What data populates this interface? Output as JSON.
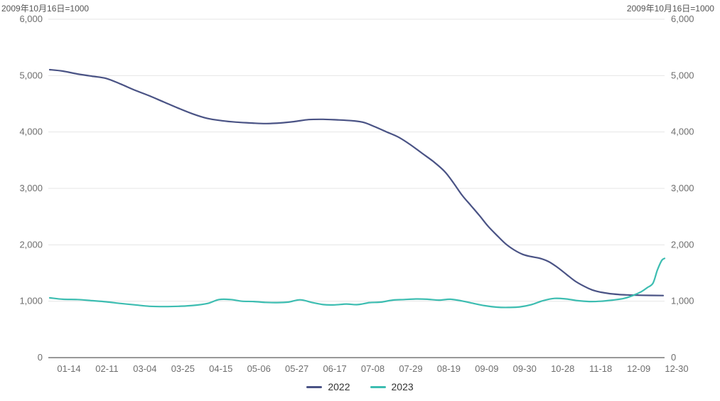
{
  "chart_data": {
    "type": "line",
    "unit_left": "2009年10月16日=1000",
    "unit_right": "2009年10月16日=1000",
    "y_ticks": [
      "0",
      "1,000",
      "2,000",
      "3,000",
      "4,000",
      "5,000",
      "6,000"
    ],
    "ylim": [
      0,
      6000
    ],
    "x_ticks": [
      "01-14",
      "02-11",
      "03-04",
      "03-25",
      "04-15",
      "05-06",
      "05-27",
      "06-17",
      "07-08",
      "07-29",
      "08-19",
      "09-09",
      "09-30",
      "10-28",
      "11-18",
      "12-09",
      "12-30"
    ],
    "grid": true,
    "legend_position": "bottom",
    "series": [
      {
        "name": "2022",
        "color": "#4a5385",
        "values": [
          [
            1,
            5105
          ],
          [
            10,
            5080
          ],
          [
            20,
            5030
          ],
          [
            30,
            4990
          ],
          [
            40,
            4950
          ],
          [
            50,
            4850
          ],
          [
            60,
            4740
          ],
          [
            70,
            4640
          ],
          [
            80,
            4530
          ],
          [
            90,
            4420
          ],
          [
            100,
            4320
          ],
          [
            110,
            4240
          ],
          [
            120,
            4200
          ],
          [
            130,
            4175
          ],
          [
            140,
            4160
          ],
          [
            150,
            4150
          ],
          [
            160,
            4160
          ],
          [
            170,
            4185
          ],
          [
            180,
            4220
          ],
          [
            190,
            4225
          ],
          [
            200,
            4215
          ],
          [
            210,
            4200
          ],
          [
            218,
            4170
          ],
          [
            226,
            4090
          ],
          [
            234,
            4000
          ],
          [
            242,
            3910
          ],
          [
            250,
            3780
          ],
          [
            258,
            3630
          ],
          [
            266,
            3480
          ],
          [
            274,
            3300
          ],
          [
            280,
            3100
          ],
          [
            286,
            2880
          ],
          [
            292,
            2700
          ],
          [
            298,
            2520
          ],
          [
            304,
            2330
          ],
          [
            310,
            2170
          ],
          [
            316,
            2020
          ],
          [
            322,
            1910
          ],
          [
            328,
            1830
          ],
          [
            334,
            1790
          ],
          [
            340,
            1760
          ],
          [
            346,
            1700
          ],
          [
            352,
            1600
          ],
          [
            358,
            1480
          ],
          [
            364,
            1360
          ],
          [
            370,
            1270
          ],
          [
            376,
            1200
          ],
          [
            382,
            1160
          ],
          [
            388,
            1135
          ],
          [
            394,
            1120
          ],
          [
            400,
            1112
          ],
          [
            410,
            1105
          ],
          [
            425,
            1100
          ]
        ]
      },
      {
        "name": "2023",
        "color": "#3dbdb1",
        "values": [
          [
            1,
            1060
          ],
          [
            10,
            1035
          ],
          [
            20,
            1030
          ],
          [
            30,
            1010
          ],
          [
            40,
            990
          ],
          [
            50,
            960
          ],
          [
            60,
            935
          ],
          [
            70,
            910
          ],
          [
            80,
            905
          ],
          [
            90,
            910
          ],
          [
            100,
            925
          ],
          [
            110,
            960
          ],
          [
            118,
            1030
          ],
          [
            126,
            1030
          ],
          [
            134,
            1000
          ],
          [
            142,
            995
          ],
          [
            150,
            980
          ],
          [
            158,
            975
          ],
          [
            166,
            985
          ],
          [
            174,
            1025
          ],
          [
            182,
            980
          ],
          [
            190,
            940
          ],
          [
            198,
            935
          ],
          [
            206,
            950
          ],
          [
            214,
            940
          ],
          [
            222,
            975
          ],
          [
            230,
            985
          ],
          [
            238,
            1020
          ],
          [
            246,
            1030
          ],
          [
            254,
            1040
          ],
          [
            262,
            1035
          ],
          [
            270,
            1020
          ],
          [
            278,
            1035
          ],
          [
            286,
            1005
          ],
          [
            294,
            960
          ],
          [
            302,
            920
          ],
          [
            310,
            895
          ],
          [
            318,
            890
          ],
          [
            326,
            900
          ],
          [
            334,
            940
          ],
          [
            342,
            1010
          ],
          [
            350,
            1050
          ],
          [
            358,
            1040
          ],
          [
            366,
            1010
          ],
          [
            374,
            995
          ],
          [
            382,
            1000
          ],
          [
            390,
            1020
          ],
          [
            398,
            1050
          ],
          [
            404,
            1100
          ],
          [
            410,
            1170
          ],
          [
            414,
            1240
          ],
          [
            418,
            1320
          ],
          [
            421,
            1550
          ],
          [
            424,
            1720
          ],
          [
            426,
            1760
          ]
        ]
      }
    ]
  }
}
